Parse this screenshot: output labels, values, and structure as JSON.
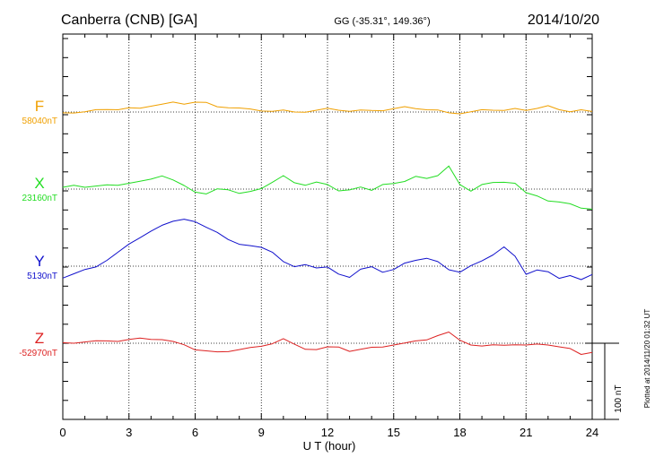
{
  "header": {
    "station": "Canberra (CNB)  [GA]",
    "coords": "GG (-35.31°, 149.36°)",
    "date": "2014/10/20"
  },
  "footer": {
    "xlabel": "U T (hour)",
    "plotted": "Plotted at 2014/11/20 01:32 UT",
    "scale_label": "100 nT"
  },
  "chart_data": {
    "type": "line",
    "x_range": [
      0,
      24
    ],
    "x_ticks": [
      "0",
      "3",
      "6",
      "9",
      "12",
      "15",
      "18",
      "21",
      "24"
    ],
    "grid": true,
    "grid_style": "dotted",
    "scale_bar_nT": 100,
    "series": [
      {
        "name": "F",
        "baseline_label": "58040nT",
        "baseline_nT": 58040,
        "color": "#f0a000",
        "x": [
          0,
          0.5,
          1,
          1.5,
          2,
          2.5,
          3,
          3.5,
          4,
          4.5,
          5,
          5.5,
          6,
          6.5,
          7,
          7.5,
          8,
          8.5,
          9,
          9.5,
          10,
          10.5,
          11,
          11.5,
          12,
          12.5,
          13,
          13.5,
          14,
          14.5,
          15,
          15.5,
          16,
          16.5,
          17,
          17.5,
          18,
          18.5,
          19,
          19.5,
          20,
          20.5,
          21,
          21.5,
          22,
          22.5,
          23,
          23.5,
          24
        ],
        "y": [
          0,
          -1,
          0,
          2,
          4,
          3,
          5,
          6,
          8,
          10,
          12,
          11,
          13,
          12,
          8,
          6,
          5,
          3,
          2,
          1,
          2,
          1,
          0,
          2,
          4,
          3,
          1,
          2,
          3,
          2,
          4,
          6,
          5,
          3,
          2,
          0,
          -2,
          0,
          2,
          3,
          2,
          4,
          3,
          5,
          8,
          2,
          1,
          3,
          0
        ]
      },
      {
        "name": "X",
        "baseline_label": "23160nT",
        "baseline_nT": 23160,
        "color": "#22dd22",
        "x": [
          0,
          0.5,
          1,
          1.5,
          2,
          2.5,
          3,
          3.5,
          4,
          4.5,
          5,
          5.5,
          6,
          6.5,
          7,
          7.5,
          8,
          8.5,
          9,
          9.5,
          10,
          10.5,
          11,
          11.5,
          12,
          12.5,
          13,
          13.5,
          14,
          14.5,
          15,
          15.5,
          16,
          16.5,
          17,
          17.5,
          18,
          18.5,
          19,
          19.5,
          20,
          20.5,
          21,
          21.5,
          22,
          22.5,
          23,
          23.5,
          24
        ],
        "y": [
          2,
          4,
          3,
          4,
          5,
          6,
          8,
          10,
          12,
          18,
          12,
          4,
          -3,
          -6,
          0,
          -2,
          -5,
          -3,
          0,
          10,
          18,
          8,
          4,
          10,
          6,
          -3,
          0,
          3,
          -2,
          5,
          8,
          10,
          16,
          15,
          18,
          30,
          5,
          -2,
          6,
          8,
          10,
          8,
          -5,
          -10,
          -15,
          -17,
          -20,
          -24,
          -26
        ]
      },
      {
        "name": "Y",
        "baseline_label": "5130nT",
        "baseline_nT": 5130,
        "color": "#1010cc",
        "x": [
          0,
          0.5,
          1,
          1.5,
          2,
          2.5,
          3,
          3.5,
          4,
          4.5,
          5,
          5.5,
          6,
          6.5,
          7,
          7.5,
          8,
          8.5,
          9,
          9.5,
          10,
          10.5,
          11,
          11.5,
          12,
          12.5,
          13,
          13.5,
          14,
          14.5,
          15,
          15.5,
          16,
          16.5,
          17,
          17.5,
          18,
          18.5,
          19,
          19.5,
          20,
          20.5,
          21,
          21.5,
          22,
          22.5,
          23,
          23.5,
          24
        ],
        "y": [
          -15,
          -10,
          -5,
          0,
          8,
          18,
          28,
          38,
          46,
          53,
          60,
          62,
          58,
          50,
          45,
          35,
          28,
          28,
          25,
          18,
          5,
          0,
          2,
          -3,
          0,
          -10,
          -15,
          -5,
          0,
          -8,
          -5,
          5,
          8,
          10,
          5,
          -4,
          -8,
          0,
          8,
          15,
          25,
          12,
          -10,
          -5,
          -8,
          -15,
          -12,
          -18,
          -12
        ]
      },
      {
        "name": "Z",
        "baseline_label": "-52970nT",
        "baseline_nT": -52970,
        "color": "#dd2222",
        "x": [
          0,
          0.5,
          1,
          1.5,
          2,
          2.5,
          3,
          3.5,
          4,
          4.5,
          5,
          5.5,
          6,
          6.5,
          7,
          7.5,
          8,
          8.5,
          9,
          9.5,
          10,
          10.5,
          11,
          11.5,
          12,
          12.5,
          13,
          13.5,
          14,
          14.5,
          15,
          15.5,
          16,
          16.5,
          17,
          17.5,
          18,
          18.5,
          19,
          19.5,
          20,
          20.5,
          21,
          21.5,
          22,
          22.5,
          23,
          23.5,
          24
        ],
        "y": [
          0,
          1,
          2,
          3,
          2,
          3,
          5,
          6,
          6,
          5,
          2,
          -3,
          -8,
          -10,
          -12,
          -10,
          -8,
          -6,
          -5,
          0,
          6,
          -2,
          -7,
          -8,
          -5,
          -6,
          -10,
          -8,
          -6,
          -4,
          -2,
          0,
          2,
          5,
          10,
          14,
          5,
          -2,
          -4,
          -3,
          -2,
          -2,
          -3,
          0,
          -2,
          -5,
          -8,
          -14,
          -12
        ]
      }
    ]
  }
}
